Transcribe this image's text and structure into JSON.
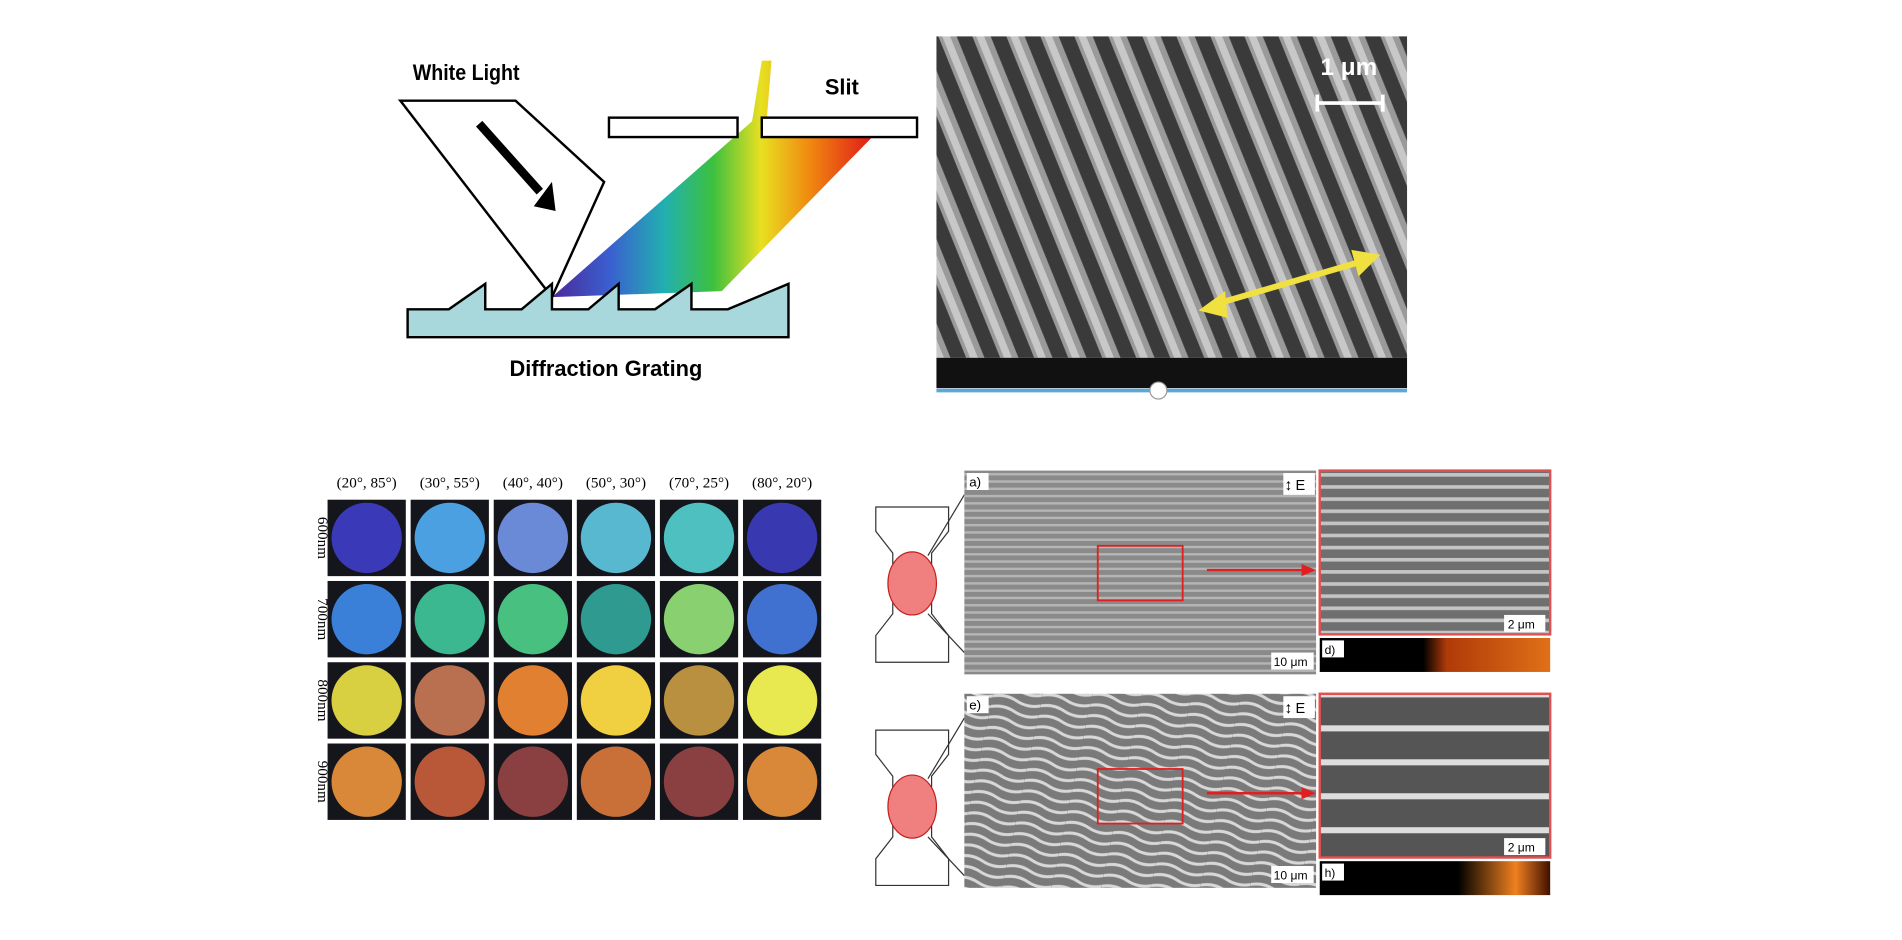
{
  "diagram": {
    "white_light": "White Light",
    "slit": "Slit",
    "grating": "Diffraction Grating"
  },
  "sem_top": {
    "scale": "1 μm"
  },
  "grid": {
    "columns": [
      "(20°, 85°)",
      "(30°, 55°)",
      "(40°, 40°)",
      "(50°, 30°)",
      "(70°, 25°)",
      "(80°, 20°)"
    ],
    "rows": [
      "600nm",
      "700nm",
      "800nm",
      "900nm"
    ]
  },
  "panels": [
    {
      "label": "a)",
      "field": "E",
      "scale_main": "10 μm",
      "scale_zoom": "2 μm",
      "strip_label": "d)"
    },
    {
      "label": "e)",
      "field": "E",
      "scale_main": "10 μm",
      "scale_zoom": "2 μm",
      "strip_label": "h)"
    }
  ]
}
